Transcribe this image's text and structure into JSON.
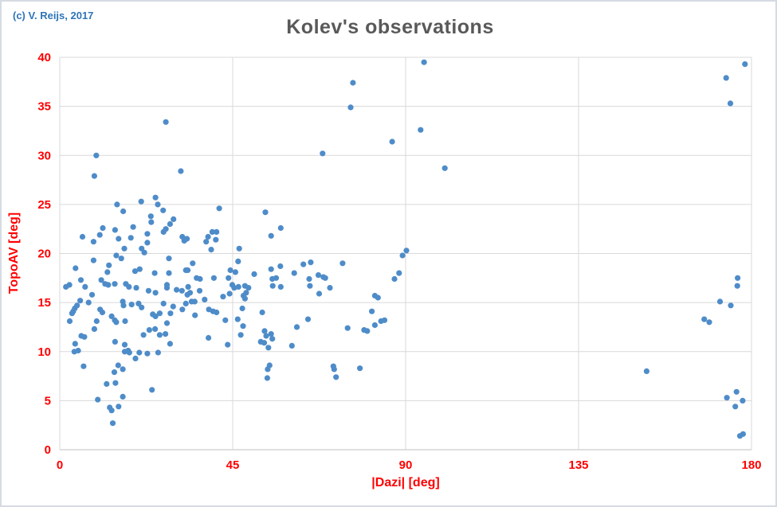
{
  "chart": {
    "title": "Kolev's observations",
    "copyright": "(c) V. Reijs, 2017",
    "xlabel": "|Dazi| [deg]",
    "ylabel": "TopoAV [deg]",
    "colors": {
      "marker": "#4e8cc9",
      "title_text": "#595959",
      "axis_text": "#ff0000",
      "copyright_text": "#2e75b6",
      "gridline": "#d9d9d9",
      "axis_line": "#bfbfbf"
    }
  },
  "chart_data": {
    "type": "scatter",
    "title": "Kolev's observations",
    "xlabel": "|Dazi| [deg]",
    "ylabel": "TopoAV [deg]",
    "xlim": [
      0,
      180
    ],
    "ylim": [
      0,
      40
    ],
    "x_ticks": [
      0,
      45,
      90,
      135,
      180
    ],
    "y_ticks": [
      0,
      5,
      10,
      15,
      20,
      25,
      30,
      35,
      40
    ],
    "grid": true,
    "legend": false,
    "series_name": "Kolev's observations",
    "points": [
      [
        27.6,
        33.4
      ],
      [
        9.5,
        30.0
      ],
      [
        9.0,
        27.9
      ],
      [
        31.5,
        28.4
      ],
      [
        14.9,
        25.0
      ],
      [
        16.5,
        24.3
      ],
      [
        21.2,
        25.3
      ],
      [
        24.9,
        25.7
      ],
      [
        25.5,
        25.0
      ],
      [
        26.9,
        24.4
      ],
      [
        23.7,
        23.8
      ],
      [
        23.8,
        23.2
      ],
      [
        29.6,
        23.5
      ],
      [
        28.7,
        23.0
      ],
      [
        27.6,
        22.5
      ],
      [
        27.0,
        22.2
      ],
      [
        11.2,
        22.6
      ],
      [
        14.4,
        22.4
      ],
      [
        19.1,
        22.7
      ],
      [
        5.9,
        21.7
      ],
      [
        10.4,
        21.9
      ],
      [
        8.8,
        21.2
      ],
      [
        15.3,
        21.5
      ],
      [
        18.5,
        21.6
      ],
      [
        22.8,
        22.0
      ],
      [
        22.8,
        21.1
      ],
      [
        16.8,
        20.5
      ],
      [
        21.3,
        20.5
      ],
      [
        31.9,
        21.7
      ],
      [
        32.4,
        21.3
      ],
      [
        33.1,
        21.5
      ],
      [
        22.0,
        20.1
      ],
      [
        41.5,
        24.6
      ],
      [
        53.5,
        24.2
      ],
      [
        57.5,
        22.6
      ],
      [
        55.0,
        21.8
      ],
      [
        39.7,
        22.2
      ],
      [
        40.8,
        22.2
      ],
      [
        38.6,
        21.7
      ],
      [
        40.6,
        21.4
      ],
      [
        38.1,
        21.2
      ],
      [
        39.4,
        20.4
      ],
      [
        46.7,
        20.5
      ],
      [
        94.8,
        39.5
      ],
      [
        76.3,
        37.4
      ],
      [
        75.7,
        34.9
      ],
      [
        93.9,
        32.6
      ],
      [
        86.5,
        31.4
      ],
      [
        68.4,
        30.2
      ],
      [
        100.2,
        28.7
      ],
      [
        178.3,
        39.3
      ],
      [
        173.4,
        37.9
      ],
      [
        174.5,
        35.3
      ],
      [
        14.7,
        19.8
      ],
      [
        16.0,
        19.5
      ],
      [
        8.8,
        19.3
      ],
      [
        28.4,
        19.5
      ],
      [
        4.1,
        18.5
      ],
      [
        12.8,
        18.8
      ],
      [
        12.4,
        18.1
      ],
      [
        19.6,
        18.2
      ],
      [
        20.8,
        18.4
      ],
      [
        24.7,
        18.0
      ],
      [
        28.4,
        18.0
      ],
      [
        5.5,
        17.3
      ],
      [
        10.8,
        17.3
      ],
      [
        2.5,
        16.8
      ],
      [
        1.6,
        16.6
      ],
      [
        6.6,
        16.6
      ],
      [
        11.8,
        16.9
      ],
      [
        12.6,
        16.8
      ],
      [
        14.3,
        16.9
      ],
      [
        17.2,
        16.9
      ],
      [
        18.0,
        16.6
      ],
      [
        19.9,
        16.5
      ],
      [
        23.1,
        16.2
      ],
      [
        24.9,
        16.0
      ],
      [
        27.9,
        16.8
      ],
      [
        27.9,
        16.5
      ],
      [
        30.4,
        16.3
      ],
      [
        31.8,
        16.2
      ],
      [
        32.8,
        18.3
      ],
      [
        32.8,
        14.9
      ],
      [
        8.4,
        15.8
      ],
      [
        5.3,
        15.2
      ],
      [
        7.5,
        15.0
      ],
      [
        4.5,
        14.7
      ],
      [
        3.9,
        14.4
      ],
      [
        3.5,
        14.1
      ],
      [
        3.2,
        13.9
      ],
      [
        16.4,
        15.1
      ],
      [
        16.6,
        14.7
      ],
      [
        18.7,
        14.8
      ],
      [
        20.5,
        14.9
      ],
      [
        21.3,
        14.5
      ],
      [
        27.0,
        14.9
      ],
      [
        29.5,
        14.6
      ],
      [
        31.9,
        14.3
      ],
      [
        2.6,
        13.1
      ],
      [
        10.5,
        14.3
      ],
      [
        11.1,
        14.0
      ],
      [
        13.5,
        13.6
      ],
      [
        14.3,
        13.2
      ],
      [
        14.7,
        13.0
      ],
      [
        17.0,
        13.1
      ],
      [
        24.2,
        13.8
      ],
      [
        24.9,
        13.6
      ],
      [
        26.0,
        13.9
      ],
      [
        28.8,
        13.9
      ],
      [
        9.6,
        13.1
      ],
      [
        27.9,
        12.9
      ],
      [
        23.3,
        12.2
      ],
      [
        24.8,
        12.3
      ],
      [
        5.6,
        11.6
      ],
      [
        9.0,
        12.3
      ],
      [
        27.5,
        11.8
      ],
      [
        14.4,
        11.0
      ],
      [
        16.9,
        10.7
      ],
      [
        4.0,
        10.8
      ],
      [
        6.4,
        11.5
      ],
      [
        21.8,
        11.7
      ],
      [
        28.7,
        10.8
      ],
      [
        26.0,
        11.7
      ],
      [
        3.8,
        10.0
      ],
      [
        4.8,
        10.1
      ],
      [
        16.9,
        10.0
      ],
      [
        17.8,
        10.1
      ],
      [
        18.1,
        9.9
      ],
      [
        20.7,
        9.9
      ],
      [
        22.8,
        9.8
      ],
      [
        19.7,
        9.3
      ],
      [
        25.6,
        9.9
      ],
      [
        6.2,
        8.5
      ],
      [
        15.2,
        8.6
      ],
      [
        16.4,
        8.2
      ],
      [
        14.2,
        7.9
      ],
      [
        12.2,
        6.7
      ],
      [
        14.5,
        6.8
      ],
      [
        24.0,
        6.1
      ],
      [
        16.4,
        5.4
      ],
      [
        9.9,
        5.1
      ],
      [
        13.0,
        4.3
      ],
      [
        13.5,
        4.0
      ],
      [
        15.3,
        4.4
      ],
      [
        13.8,
        2.7
      ],
      [
        34.6,
        19.0
      ],
      [
        33.3,
        18.3
      ],
      [
        46.4,
        19.2
      ],
      [
        44.4,
        18.3
      ],
      [
        45.7,
        18.1
      ],
      [
        35.6,
        17.5
      ],
      [
        36.5,
        17.4
      ],
      [
        40.1,
        17.5
      ],
      [
        43.9,
        17.5
      ],
      [
        50.6,
        17.9
      ],
      [
        55.0,
        18.4
      ],
      [
        57.4,
        18.7
      ],
      [
        63.4,
        18.9
      ],
      [
        65.3,
        19.1
      ],
      [
        61.0,
        18.0
      ],
      [
        55.3,
        17.4
      ],
      [
        56.3,
        17.5
      ],
      [
        55.4,
        16.7
      ],
      [
        57.5,
        16.6
      ],
      [
        33.4,
        16.6
      ],
      [
        33.9,
        16.0
      ],
      [
        33.2,
        15.8
      ],
      [
        36.4,
        16.2
      ],
      [
        37.7,
        15.3
      ],
      [
        34.3,
        15.1
      ],
      [
        35.1,
        15.1
      ],
      [
        42.5,
        15.6
      ],
      [
        44.2,
        15.9
      ],
      [
        44.9,
        16.8
      ],
      [
        45.4,
        16.5
      ],
      [
        46.5,
        16.6
      ],
      [
        48.2,
        16.7
      ],
      [
        49.1,
        16.5
      ],
      [
        48.5,
        16.0
      ],
      [
        47.8,
        15.7
      ],
      [
        48.2,
        15.4
      ],
      [
        64.9,
        17.4
      ],
      [
        65.1,
        16.7
      ],
      [
        38.8,
        14.3
      ],
      [
        39.9,
        14.1
      ],
      [
        40.8,
        14.0
      ],
      [
        35.2,
        13.7
      ],
      [
        47.5,
        14.4
      ],
      [
        52.7,
        14.0
      ],
      [
        43.1,
        13.2
      ],
      [
        46.3,
        13.3
      ],
      [
        47.7,
        12.6
      ],
      [
        64.6,
        13.3
      ],
      [
        61.7,
        12.5
      ],
      [
        53.3,
        12.1
      ],
      [
        53.7,
        11.6
      ],
      [
        55.0,
        11.8
      ],
      [
        55.3,
        11.3
      ],
      [
        52.3,
        11.0
      ],
      [
        53.2,
        10.9
      ],
      [
        54.3,
        10.4
      ],
      [
        38.7,
        11.4
      ],
      [
        43.7,
        10.7
      ],
      [
        47.1,
        11.7
      ],
      [
        60.4,
        10.6
      ],
      [
        54.6,
        8.6
      ],
      [
        54.1,
        8.2
      ],
      [
        54.0,
        7.3
      ],
      [
        89.2,
        19.8
      ],
      [
        90.2,
        20.3
      ],
      [
        73.6,
        19.0
      ],
      [
        67.3,
        17.8
      ],
      [
        68.6,
        17.6
      ],
      [
        69.1,
        17.5
      ],
      [
        70.3,
        16.5
      ],
      [
        67.5,
        15.9
      ],
      [
        87.1,
        17.4
      ],
      [
        88.3,
        18.0
      ],
      [
        82.0,
        15.7
      ],
      [
        82.8,
        15.5
      ],
      [
        81.2,
        14.1
      ],
      [
        74.9,
        12.4
      ],
      [
        79.2,
        12.2
      ],
      [
        80.0,
        12.1
      ],
      [
        82.0,
        12.7
      ],
      [
        83.6,
        13.1
      ],
      [
        84.5,
        13.2
      ],
      [
        71.2,
        8.5
      ],
      [
        71.4,
        8.2
      ],
      [
        71.9,
        7.4
      ],
      [
        78.1,
        8.3
      ],
      [
        176.4,
        17.5
      ],
      [
        176.3,
        16.7
      ],
      [
        171.8,
        15.1
      ],
      [
        174.6,
        14.7
      ],
      [
        167.7,
        13.3
      ],
      [
        169.0,
        13.0
      ],
      [
        152.7,
        8.0
      ],
      [
        173.6,
        5.3
      ],
      [
        176.1,
        5.9
      ],
      [
        177.7,
        5.0
      ],
      [
        175.8,
        4.4
      ],
      [
        177.0,
        1.4
      ],
      [
        177.8,
        1.6
      ]
    ]
  }
}
